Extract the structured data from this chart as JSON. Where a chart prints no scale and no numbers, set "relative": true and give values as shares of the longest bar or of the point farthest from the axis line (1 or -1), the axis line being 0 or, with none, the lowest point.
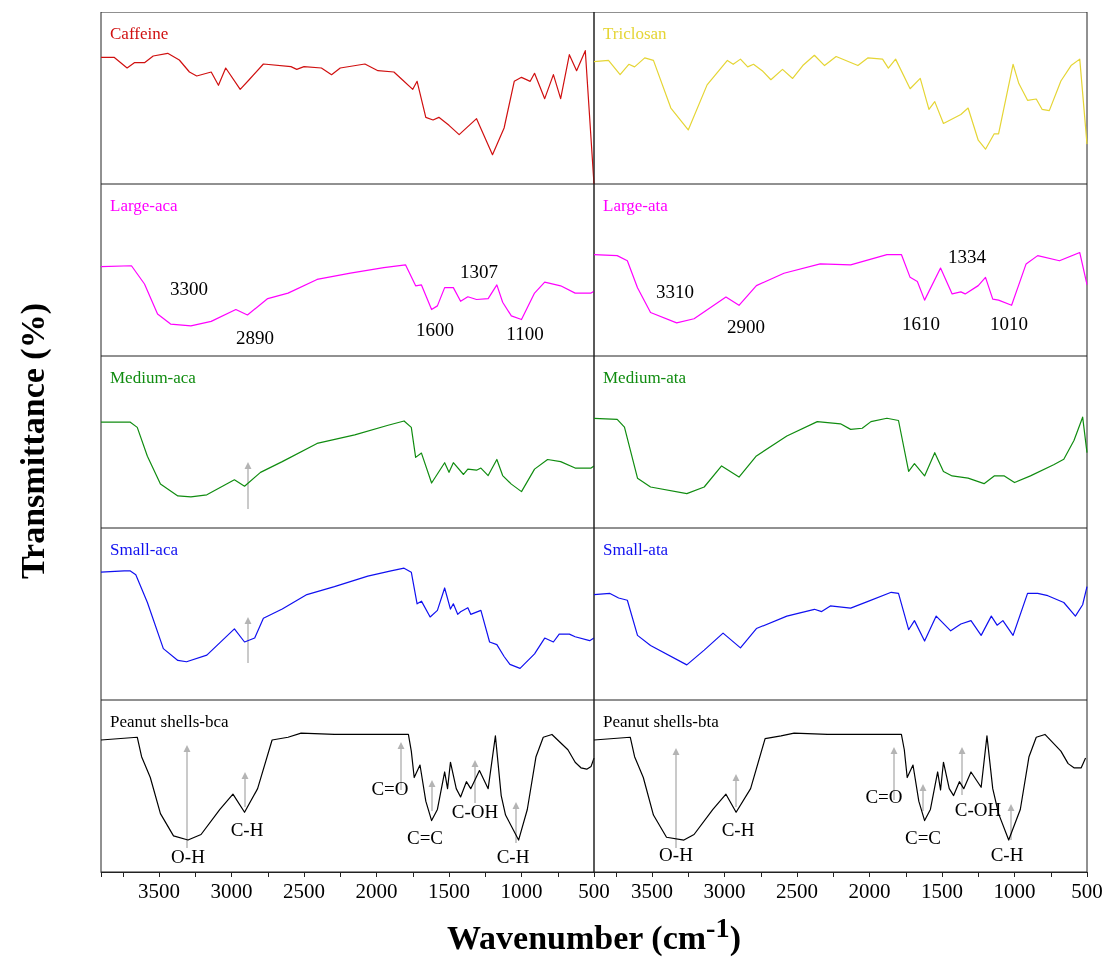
{
  "chart_data": [
    {
      "type": "line",
      "relative": true,
      "ylabel": "Transmittance (%)",
      "xlim": [
        3900,
        500
      ],
      "tick_labels": false,
      "x": [
        3900,
        3810,
        3720,
        3670,
        3600,
        3540,
        3440,
        3360,
        3290,
        3240,
        3140,
        3090,
        3040,
        2940,
        2880,
        2780,
        2590,
        2550,
        2500,
        2380,
        2310,
        2250,
        2080,
        1990,
        1880,
        1820,
        1750,
        1720,
        1660,
        1610,
        1570,
        1500,
        1430,
        1310,
        1200,
        1120,
        1050,
        1000,
        940,
        910,
        840,
        780,
        730,
        670,
        620,
        560,
        500
      ],
      "series": [
        {
          "name": "Caffeine",
          "color": "#d01010",
          "values": [
            0.95,
            0.95,
            0.87,
            0.91,
            0.91,
            0.96,
            0.98,
            0.93,
            0.84,
            0.81,
            0.84,
            0.74,
            0.87,
            0.71,
            0.78,
            0.9,
            0.88,
            0.86,
            0.88,
            0.87,
            0.82,
            0.87,
            0.9,
            0.85,
            0.84,
            0.78,
            0.71,
            0.77,
            0.5,
            0.48,
            0.5,
            0.44,
            0.37,
            0.49,
            0.22,
            0.42,
            0.77,
            0.8,
            0.77,
            0.83,
            0.64,
            0.82,
            0.64,
            0.97,
            0.85,
            1.0,
            0
          ]
        }
      ]
    },
    {
      "type": "line",
      "relative": true,
      "xlim": [
        3900,
        500
      ],
      "tick_labels": false,
      "x": [
        3900,
        3800,
        3720,
        3660,
        3620,
        3550,
        3490,
        3370,
        3250,
        3120,
        2980,
        2940,
        2890,
        2840,
        2800,
        2740,
        2680,
        2600,
        2530,
        2460,
        2380,
        2310,
        2230,
        2080,
        2010,
        1910,
        1870,
        1820,
        1720,
        1650,
        1590,
        1550,
        1490,
        1370,
        1320,
        1250,
        1200,
        1140,
        1110,
        1010,
        970,
        910,
        850,
        810,
        760,
        680,
        610,
        550,
        500
      ],
      "series": [
        {
          "name": "Triclosan",
          "color": "#e5d535",
          "values": [
            0.95,
            0.96,
            0.85,
            0.93,
            0.91,
            0.98,
            0.96,
            0.59,
            0.42,
            0.77,
            0.96,
            0.93,
            0.97,
            0.91,
            0.93,
            0.88,
            0.81,
            0.89,
            0.82,
            0.92,
            1.0,
            0.92,
            0.99,
            0.92,
            0.98,
            0.97,
            0.9,
            0.97,
            0.74,
            0.82,
            0.58,
            0.64,
            0.47,
            0.54,
            0.59,
            0.34,
            0.27,
            0.39,
            0.39,
            0.93,
            0.78,
            0.65,
            0.66,
            0.58,
            0.57,
            0.8,
            0.92,
            0.97,
            0.31
          ]
        }
      ]
    },
    {
      "type": "line",
      "relative": true,
      "xlim": [
        3900,
        500
      ],
      "tick_labels": false,
      "x": [
        3900,
        3690,
        3600,
        3510,
        3420,
        3280,
        3140,
        2970,
        2890,
        2750,
        2610,
        2410,
        2180,
        1950,
        1800,
        1730,
        1690,
        1620,
        1580,
        1530,
        1470,
        1420,
        1370,
        1310,
        1230,
        1170,
        1130,
        1070,
        1000,
        910,
        840,
        730,
        630,
        520,
        500
      ],
      "series": [
        {
          "name": "Large-aca",
          "color": "#ff00ff",
          "values": [
            0.98,
            0.99,
            0.79,
            0.46,
            0.35,
            0.33,
            0.38,
            0.51,
            0.45,
            0.63,
            0.69,
            0.84,
            0.91,
            0.97,
            1.0,
            0.77,
            0.78,
            0.51,
            0.55,
            0.75,
            0.75,
            0.6,
            0.65,
            0.62,
            0.63,
            0.78,
            0.59,
            0.44,
            0.4,
            0.69,
            0.81,
            0.77,
            0.69,
            0.69,
            0.71
          ]
        }
      ],
      "annotations": [
        "3300",
        "2890",
        "1600",
        "1307",
        "1100"
      ]
    },
    {
      "type": "line",
      "relative": true,
      "xlim": [
        3900,
        500
      ],
      "tick_labels": false,
      "x": [
        3900,
        3740,
        3670,
        3600,
        3510,
        3330,
        3210,
        2990,
        2900,
        2780,
        2590,
        2340,
        2130,
        1880,
        1780,
        1720,
        1670,
        1620,
        1510,
        1430,
        1370,
        1340,
        1250,
        1200,
        1150,
        1110,
        1020,
        920,
        840,
        690,
        550,
        500
      ],
      "series": [
        {
          "name": "Large-ata",
          "color": "#ff00ff",
          "values": [
            0.98,
            0.97,
            0.92,
            0.66,
            0.42,
            0.32,
            0.36,
            0.57,
            0.49,
            0.68,
            0.8,
            0.89,
            0.88,
            0.98,
            0.98,
            0.76,
            0.72,
            0.54,
            0.85,
            0.6,
            0.62,
            0.6,
            0.68,
            0.76,
            0.55,
            0.54,
            0.49,
            0.89,
            0.97,
            0.92,
            1.0,
            0.69
          ]
        }
      ],
      "annotations": [
        "3310",
        "2900",
        "1610",
        "1334",
        "1010"
      ]
    },
    {
      "type": "line",
      "relative": true,
      "xlim": [
        3900,
        500
      ],
      "tick_labels": false,
      "x": [
        3900,
        3700,
        3650,
        3580,
        3490,
        3370,
        3280,
        3170,
        2980,
        2910,
        2800,
        2650,
        2410,
        2150,
        1920,
        1810,
        1760,
        1730,
        1690,
        1620,
        1530,
        1500,
        1470,
        1400,
        1370,
        1310,
        1280,
        1230,
        1170,
        1130,
        1070,
        1000,
        910,
        820,
        730,
        630,
        520,
        500
      ],
      "series": [
        {
          "name": "Medium-aca",
          "color": "#108c10",
          "values": [
            0.99,
            0.99,
            0.94,
            0.67,
            0.41,
            0.3,
            0.29,
            0.31,
            0.45,
            0.39,
            0.52,
            0.62,
            0.79,
            0.87,
            0.96,
            1.0,
            0.94,
            0.66,
            0.7,
            0.42,
            0.61,
            0.52,
            0.61,
            0.5,
            0.55,
            0.54,
            0.56,
            0.49,
            0.64,
            0.49,
            0.41,
            0.34,
            0.55,
            0.64,
            0.62,
            0.56,
            0.56,
            0.58
          ]
        }
      ]
    },
    {
      "type": "line",
      "relative": true,
      "xlim": [
        3900,
        500
      ],
      "tick_labels": false,
      "x": [
        3900,
        3740,
        3690,
        3600,
        3510,
        3260,
        3140,
        3020,
        2900,
        2780,
        2570,
        2360,
        2200,
        2130,
        2050,
        1990,
        1880,
        1800,
        1730,
        1690,
        1620,
        1550,
        1490,
        1430,
        1320,
        1210,
        1140,
        1070,
        1000,
        890,
        730,
        660,
        590,
        530,
        500
      ],
      "series": [
        {
          "name": "Medium-ata",
          "color": "#108c10",
          "values": [
            0.99,
            0.98,
            0.91,
            0.45,
            0.37,
            0.31,
            0.37,
            0.56,
            0.46,
            0.65,
            0.83,
            0.96,
            0.94,
            0.89,
            0.9,
            0.96,
            0.99,
            0.97,
            0.51,
            0.58,
            0.47,
            0.68,
            0.51,
            0.47,
            0.45,
            0.4,
            0.47,
            0.47,
            0.41,
            0.47,
            0.57,
            0.62,
            0.79,
            1.0,
            0.68
          ]
        }
      ]
    },
    {
      "type": "line",
      "relative": true,
      "xlim": [
        3900,
        500
      ],
      "tick_labels": false,
      "x": [
        3900,
        3740,
        3700,
        3660,
        3580,
        3470,
        3370,
        3310,
        3170,
        2980,
        2910,
        2840,
        2780,
        2650,
        2480,
        2290,
        2060,
        1900,
        1810,
        1760,
        1720,
        1690,
        1630,
        1580,
        1530,
        1490,
        1470,
        1440,
        1420,
        1370,
        1350,
        1280,
        1220,
        1170,
        1120,
        1080,
        1010,
        910,
        840,
        780,
        740,
        670,
        630,
        530,
        500
      ],
      "series": [
        {
          "name": "Small-aca",
          "color": "#1010f0",
          "values": [
            0.97,
            0.98,
            0.98,
            0.95,
            0.74,
            0.39,
            0.3,
            0.29,
            0.34,
            0.54,
            0.44,
            0.47,
            0.62,
            0.69,
            0.8,
            0.86,
            0.94,
            0.98,
            1.0,
            0.97,
            0.73,
            0.75,
            0.63,
            0.68,
            0.85,
            0.69,
            0.73,
            0.65,
            0.67,
            0.7,
            0.65,
            0.68,
            0.44,
            0.42,
            0.33,
            0.27,
            0.24,
            0.35,
            0.47,
            0.44,
            0.5,
            0.5,
            0.48,
            0.45,
            0.47
          ]
        }
      ]
    },
    {
      "type": "line",
      "relative": true,
      "xlim": [
        3900,
        500
      ],
      "tick_labels": false,
      "x": [
        3900,
        3790,
        3730,
        3670,
        3600,
        3510,
        3260,
        3140,
        3010,
        2890,
        2780,
        2570,
        2380,
        2330,
        2270,
        2130,
        2010,
        1850,
        1800,
        1730,
        1690,
        1620,
        1540,
        1440,
        1370,
        1300,
        1230,
        1160,
        1120,
        1080,
        1010,
        910,
        840,
        770,
        660,
        580,
        530,
        500
      ],
      "series": [
        {
          "name": "Small-ata",
          "color": "#1010f0",
          "values": [
            0.93,
            0.94,
            0.9,
            0.88,
            0.57,
            0.48,
            0.31,
            0.44,
            0.59,
            0.46,
            0.63,
            0.74,
            0.8,
            0.78,
            0.83,
            0.81,
            0.87,
            0.95,
            0.94,
            0.62,
            0.7,
            0.52,
            0.74,
            0.61,
            0.67,
            0.7,
            0.57,
            0.74,
            0.66,
            0.7,
            0.57,
            0.94,
            0.94,
            0.92,
            0.86,
            0.74,
            0.84,
            1.0
          ]
        }
      ]
    },
    {
      "type": "line",
      "relative": true,
      "xlabel": "Wavenumber (cm$^{-1}$)",
      "xlim": [
        3900,
        500
      ],
      "tick_labels": "x",
      "xticks": [
        {
          "value": 3750,
          "label": null
        },
        3500,
        {
          "value": 3250,
          "label": null
        },
        3000,
        {
          "value": 2750,
          "label": null
        },
        2500,
        {
          "value": 2250,
          "label": null
        },
        2000,
        {
          "value": 1750,
          "label": null
        },
        1500,
        {
          "value": 1250,
          "label": null
        },
        1000,
        {
          "value": 750,
          "label": null
        },
        500
      ],
      "x": [
        3900,
        3650,
        3620,
        3560,
        3490,
        3400,
        3300,
        3210,
        3080,
        2990,
        2910,
        2820,
        2720,
        2610,
        2520,
        2290,
        1780,
        1760,
        1740,
        1700,
        1660,
        1620,
        1580,
        1530,
        1510,
        1490,
        1450,
        1420,
        1380,
        1350,
        1290,
        1230,
        1180,
        1140,
        1110,
        1020,
        960,
        900,
        850,
        790,
        680,
        630,
        590,
        550,
        520,
        500
      ],
      "series": [
        {
          "name": "Peanut shells-bca",
          "color": "#000000",
          "values": [
            0.95,
            0.97,
            0.83,
            0.68,
            0.42,
            0.26,
            0.23,
            0.27,
            0.45,
            0.56,
            0.43,
            0.6,
            0.95,
            0.97,
            1.0,
            0.99,
            0.99,
            0.87,
            0.68,
            0.77,
            0.51,
            0.37,
            0.45,
            0.72,
            0.6,
            0.79,
            0.6,
            0.54,
            0.65,
            0.6,
            0.73,
            0.6,
            0.98,
            0.55,
            0.41,
            0.23,
            0.45,
            0.83,
            0.97,
            0.99,
            0.88,
            0.79,
            0.75,
            0.74,
            0.76,
            0.82
          ]
        }
      ],
      "annotations": [
        "O-H",
        "C-H",
        "C=O",
        "C=C",
        "C-OH",
        "C-H"
      ]
    },
    {
      "type": "line",
      "relative": true,
      "xlim": [
        3900,
        500
      ],
      "tick_labels": "x",
      "xticks": [
        {
          "value": 3750,
          "label": null
        },
        3500,
        {
          "value": 3250,
          "label": null
        },
        3000,
        {
          "value": 2750,
          "label": null
        },
        2500,
        {
          "value": 2250,
          "label": null
        },
        2000,
        {
          "value": 1750,
          "label": null
        },
        1500,
        {
          "value": 1250,
          "label": null
        },
        1000,
        {
          "value": 750,
          "label": null
        },
        500
      ],
      "x": [
        3900,
        3650,
        3620,
        3560,
        3490,
        3400,
        3280,
        3210,
        3080,
        2990,
        2920,
        2820,
        2720,
        2610,
        2520,
        2290,
        1780,
        1760,
        1740,
        1700,
        1660,
        1620,
        1580,
        1530,
        1510,
        1490,
        1450,
        1420,
        1380,
        1350,
        1300,
        1230,
        1190,
        1150,
        1110,
        1040,
        960,
        900,
        850,
        790,
        680,
        630,
        590,
        540,
        510
      ],
      "series": [
        {
          "name": "Peanut shells-bta",
          "color": "#000000",
          "values": [
            0.95,
            0.97,
            0.83,
            0.68,
            0.41,
            0.25,
            0.23,
            0.27,
            0.45,
            0.56,
            0.43,
            0.6,
            0.96,
            0.98,
            1.0,
            0.99,
            0.99,
            0.88,
            0.68,
            0.77,
            0.51,
            0.37,
            0.45,
            0.72,
            0.59,
            0.79,
            0.6,
            0.55,
            0.65,
            0.6,
            0.72,
            0.61,
            0.98,
            0.6,
            0.42,
            0.23,
            0.45,
            0.83,
            0.97,
            0.99,
            0.87,
            0.78,
            0.75,
            0.75,
            0.82
          ]
        }
      ],
      "annotations": [
        "O-H",
        "C-H",
        "C=O",
        "C=C",
        "C-OH",
        "C-H"
      ]
    }
  ]
}
